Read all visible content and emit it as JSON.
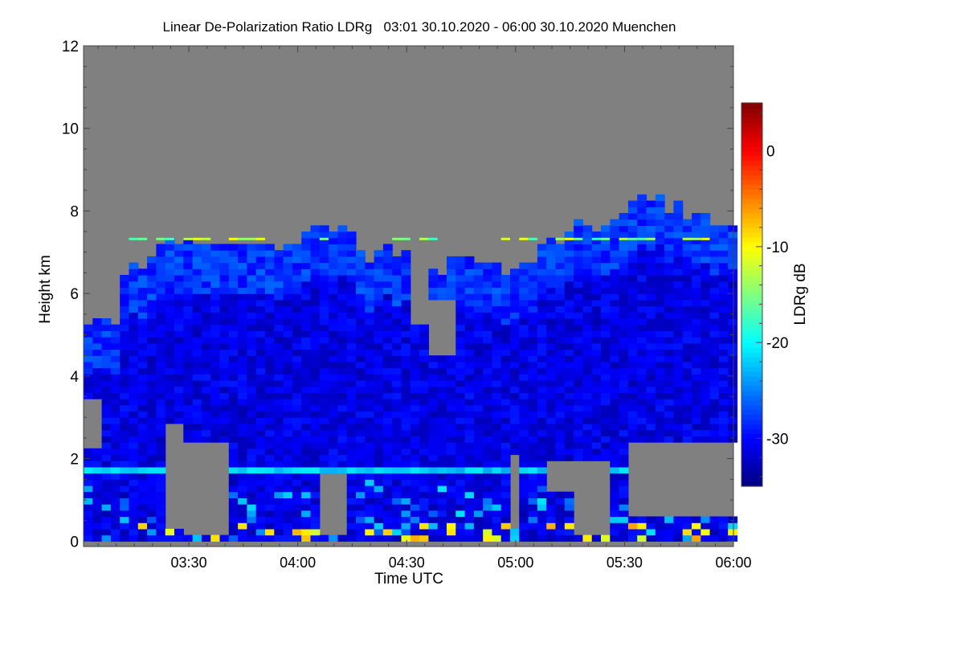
{
  "chart_data": {
    "type": "heatmap",
    "title": "Linear De-Polarization Ratio LDRg   03:01 30.10.2020 - 06:00 30.10.2020 Muenchen",
    "xlabel": "Time UTC",
    "ylabel": "Height km",
    "xlim_minutes_utc": [
      181,
      360
    ],
    "ylim": [
      -0.13,
      12
    ],
    "xticks": [
      {
        "label": "03:30",
        "min": 210
      },
      {
        "label": "04:00",
        "min": 240
      },
      {
        "label": "04:30",
        "min": 270
      },
      {
        "label": "05:00",
        "min": 300
      },
      {
        "label": "05:30",
        "min": 330
      },
      {
        "label": "06:00",
        "min": 360
      }
    ],
    "yticks": [
      "0",
      "2",
      "4",
      "6",
      "8",
      "10",
      "12"
    ],
    "colorbar": {
      "label": "LDRg dB",
      "range": [
        -35,
        5
      ],
      "ticks": [
        "0",
        "-10",
        "-20",
        "-30"
      ],
      "colormap": "jet"
    },
    "no_signal_color": "#808080",
    "column_step_min": 5,
    "column_start_min": 180,
    "cloud_top_km": [
      5.3,
      5.4,
      6.5,
      6.6,
      7.2,
      7.2,
      7.2,
      7.1,
      7.1,
      7.1,
      7.1,
      7.2,
      7.4,
      7.5,
      7.4,
      6.9,
      6.9,
      6.8,
      6.5,
      6.5,
      6.7,
      6.7,
      6.6,
      6.5,
      6.5,
      7.3,
      7.3,
      7.6,
      7.6,
      7.7,
      8.2,
      8.3,
      8.0,
      7.8,
      7.8,
      7.6
    ],
    "cloud_value_db": -31,
    "bright_layer": {
      "height_km": 1.6,
      "value_db": -22
    },
    "residual_layer_km": 7.3,
    "no_signal_regions": [
      {
        "t0": 180,
        "t1": 185,
        "z0": 2.1,
        "z1": 3.3
      },
      {
        "t0": 202,
        "t1": 208,
        "z0": 0.2,
        "z1": 2.8
      },
      {
        "t0": 208,
        "t1": 219,
        "z0": 0.1,
        "z1": 2.3
      },
      {
        "t0": 244,
        "t1": 253,
        "z0": 0.1,
        "z1": 1.6
      },
      {
        "t0": 270,
        "t1": 274,
        "z0": 5.2,
        "z1": 6.5
      },
      {
        "t0": 274,
        "t1": 283,
        "z0": 4.5,
        "z1": 5.8
      },
      {
        "t0": 298,
        "t1": 301,
        "z0": 0.2,
        "z1": 2.0
      },
      {
        "t0": 308,
        "t1": 314,
        "z0": 1.2,
        "z1": 1.9
      },
      {
        "t0": 315,
        "t1": 324,
        "z0": 0.1,
        "z1": 1.9
      },
      {
        "t0": 331,
        "t1": 360,
        "z0": 0.6,
        "z1": 2.3
      }
    ]
  }
}
